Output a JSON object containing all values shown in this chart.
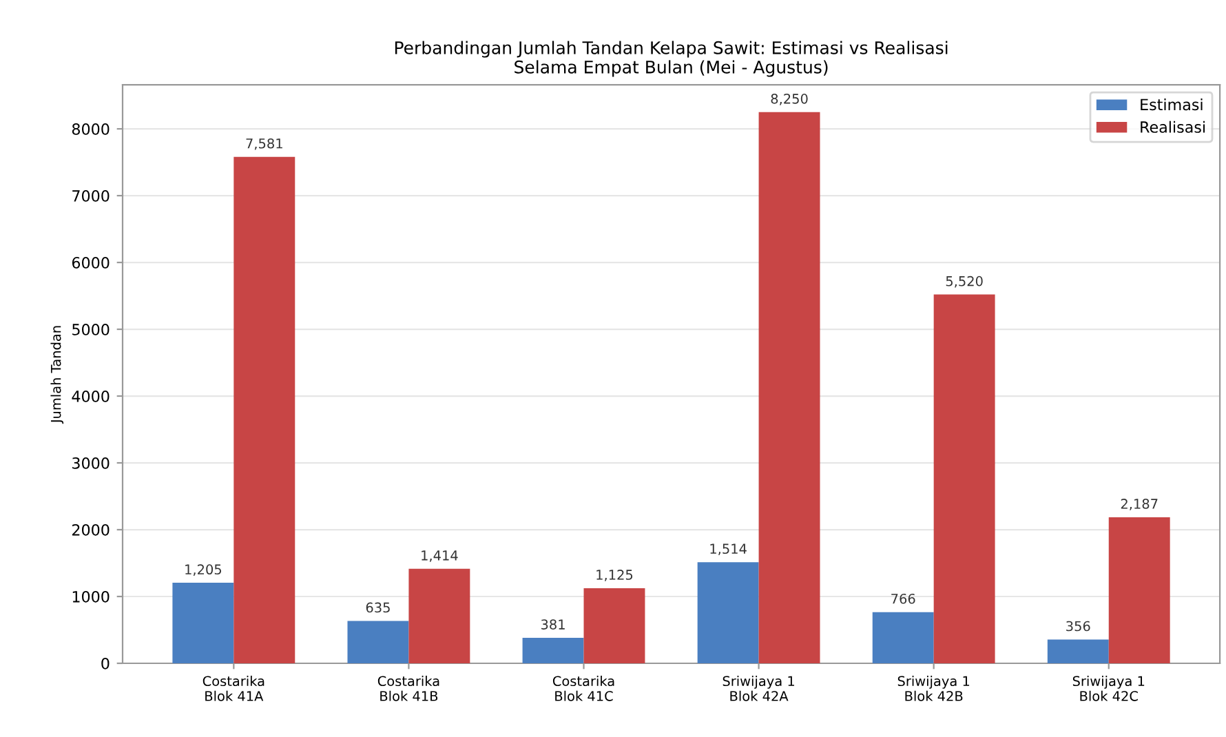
{
  "chart_data": {
    "type": "bar",
    "title": "Perbandingan Jumlah Tandan Kelapa Sawit: Estimasi vs Realisasi\nSelama Empat Bulan (Mei - Agustus)",
    "ylabel": "Jumlah Tandan",
    "categories": [
      "Costarika\nBlok 41A",
      "Costarika\nBlok 41B",
      "Costarika\nBlok 41C",
      "Sriwijaya 1\nBlok 42A",
      "Sriwijaya 1\nBlok 42B",
      "Sriwijaya 1\nBlok 42C"
    ],
    "series": [
      {
        "name": "Estimasi",
        "color": "#4a7fc1",
        "values": [
          1205,
          635,
          381,
          1514,
          766,
          356
        ],
        "value_labels": [
          "1,205",
          "635",
          "381",
          "1,514",
          "766",
          "356"
        ]
      },
      {
        "name": "Realisasi",
        "color": "#c84545",
        "values": [
          7581,
          1414,
          1125,
          8250,
          5520,
          2187
        ],
        "value_labels": [
          "7,581",
          "1,414",
          "1,125",
          "8,250",
          "5,520",
          "2,187"
        ]
      }
    ],
    "ylim": [
      0,
      8660
    ],
    "yticks": [
      0,
      1000,
      2000,
      3000,
      4000,
      5000,
      6000,
      7000,
      8000
    ],
    "grid": "y",
    "legend": "top right"
  }
}
